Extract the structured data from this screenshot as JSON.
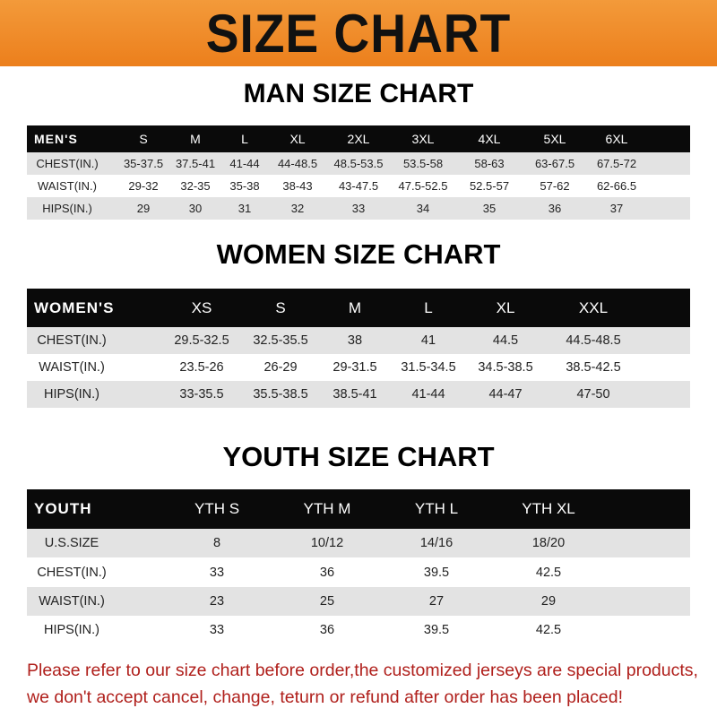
{
  "banner": {
    "title": "SIZE CHART"
  },
  "men": {
    "title": "MAN SIZE CHART",
    "header": [
      "MEN'S",
      "S",
      "M",
      "L",
      "XL",
      "2XL",
      "3XL",
      "4XL",
      "5XL",
      "6XL"
    ],
    "rows": [
      [
        "CHEST(IN.)",
        "35-37.5",
        "37.5-41",
        "41-44",
        "44-48.5",
        "48.5-53.5",
        "53.5-58",
        "58-63",
        "63-67.5",
        "67.5-72"
      ],
      [
        "WAIST(IN.)",
        "29-32",
        "32-35",
        "35-38",
        "38-43",
        "43-47.5",
        "47.5-52.5",
        "52.5-57",
        "57-62",
        "62-66.5"
      ],
      [
        "HIPS(IN.)",
        "29",
        "30",
        "31",
        "32",
        "33",
        "34",
        "35",
        "36",
        "37"
      ]
    ]
  },
  "women": {
    "title": "WOMEN SIZE CHART",
    "header": [
      "WOMEN'S",
      "XS",
      "S",
      "M",
      "L",
      "XL",
      "XXL"
    ],
    "rows": [
      [
        "CHEST(IN.)",
        "29.5-32.5",
        "32.5-35.5",
        "38",
        "41",
        "44.5",
        "44.5-48.5"
      ],
      [
        "WAIST(IN.)",
        "23.5-26",
        "26-29",
        "29-31.5",
        "31.5-34.5",
        "34.5-38.5",
        "38.5-42.5"
      ],
      [
        "HIPS(IN.)",
        "33-35.5",
        "35.5-38.5",
        "38.5-41",
        "41-44",
        "44-47",
        "47-50"
      ]
    ]
  },
  "youth": {
    "title": "YOUTH SIZE CHART",
    "header": [
      "YOUTH",
      "YTH S",
      "YTH M",
      "YTH L",
      "YTH XL"
    ],
    "rows": [
      [
        "U.S.SIZE",
        "8",
        "10/12",
        "14/16",
        "18/20"
      ],
      [
        "CHEST(IN.)",
        "33",
        "36",
        "39.5",
        "42.5"
      ],
      [
        "WAIST(IN.)",
        "23",
        "25",
        "27",
        "29"
      ],
      [
        "HIPS(IN.)",
        "33",
        "36",
        "39.5",
        "42.5"
      ]
    ]
  },
  "note": {
    "line1": "Please refer to our size chart before order,the customized jerseys are special products,",
    "line2": "we don't accept cancel, change, teturn or refund after order has been placed!"
  }
}
